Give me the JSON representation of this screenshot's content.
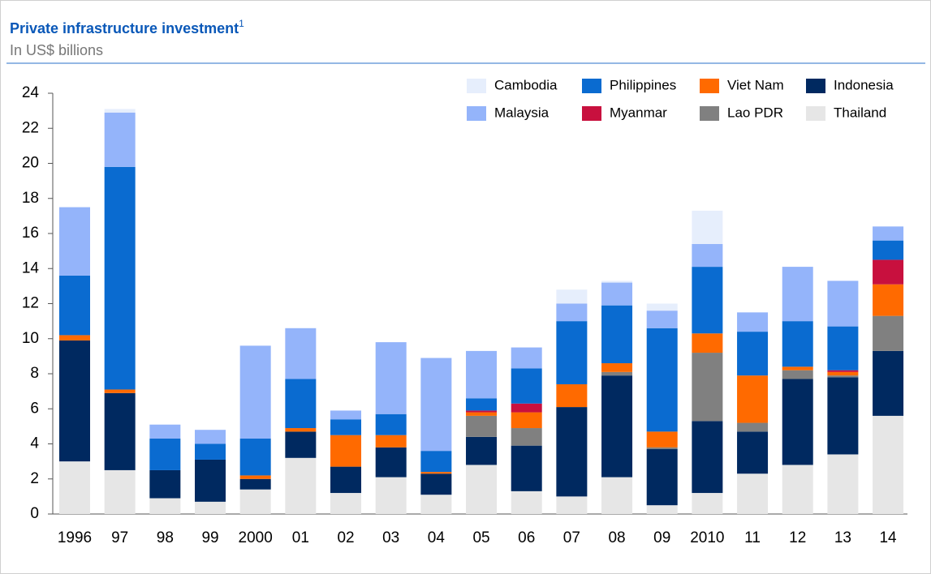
{
  "chart_data": {
    "type": "stacked_bar",
    "title": "Private infrastructure investment",
    "title_footnote": "1",
    "subtitle": "In US$ billions",
    "categories": [
      "1996",
      "97",
      "98",
      "99",
      "2000",
      "01",
      "02",
      "03",
      "04",
      "05",
      "06",
      "07",
      "08",
      "09",
      "2010",
      "11",
      "12",
      "13",
      "14"
    ],
    "series": [
      {
        "name": "Cambodia",
        "color": "#e6eefc",
        "values": [
          0,
          0.2,
          0,
          0,
          0,
          0,
          0,
          0,
          0,
          0,
          0,
          0.8,
          0.1,
          0.4,
          1.9,
          0,
          0,
          0,
          0
        ]
      },
      {
        "name": "Philippines",
        "color": "#0a6bd0",
        "values": [
          3.4,
          12.7,
          1.8,
          0.9,
          2.1,
          2.8,
          0.9,
          1.2,
          1.2,
          0.7,
          2.0,
          3.6,
          3.3,
          5.9,
          3.8,
          2.5,
          2.6,
          2.5,
          1.1
        ]
      },
      {
        "name": "Viet Nam",
        "color": "#ff6a00",
        "values": [
          0.3,
          0.2,
          0,
          0,
          0.2,
          0.2,
          1.8,
          0.7,
          0.1,
          0.2,
          0.9,
          1.3,
          0.5,
          0.9,
          1.1,
          2.7,
          0.2,
          0.2,
          1.8
        ]
      },
      {
        "name": "Indonesia",
        "color": "#002960",
        "values": [
          6.9,
          4.4,
          1.6,
          2.4,
          0.6,
          1.5,
          1.5,
          1.7,
          1.2,
          1.6,
          2.6,
          5.1,
          5.8,
          3.2,
          4.1,
          2.4,
          4.9,
          4.4,
          3.7
        ]
      },
      {
        "name": "Malaysia",
        "color": "#94b4fa",
        "values": [
          3.9,
          3.1,
          0.8,
          0.8,
          5.3,
          2.9,
          0.5,
          4.1,
          5.3,
          2.7,
          1.2,
          1.0,
          1.3,
          1.0,
          1.3,
          1.1,
          3.1,
          2.6,
          0.8
        ]
      },
      {
        "name": "Myanmar",
        "color": "#c8103e",
        "values": [
          0,
          0,
          0,
          0,
          0,
          0,
          0,
          0,
          0,
          0.1,
          0.5,
          0,
          0,
          0,
          0,
          0,
          0,
          0.1,
          1.4
        ]
      },
      {
        "name": "Lao PDR",
        "color": "#808080",
        "values": [
          0,
          0,
          0,
          0,
          0,
          0,
          0,
          0,
          0,
          1.2,
          1.0,
          0,
          0.2,
          0.1,
          3.9,
          0.5,
          0.5,
          0.1,
          2.0
        ]
      },
      {
        "name": "Thailand",
        "color": "#e6e6e6",
        "values": [
          3.0,
          2.5,
          0.9,
          0.7,
          1.4,
          3.2,
          1.2,
          2.1,
          1.1,
          2.8,
          1.3,
          1.0,
          2.1,
          0.5,
          1.2,
          2.3,
          2.8,
          3.4,
          5.6
        ]
      }
    ],
    "ylim": [
      0,
      24
    ],
    "yticks": [
      0,
      2,
      4,
      6,
      8,
      10,
      12,
      14,
      16,
      18,
      20,
      22,
      24
    ],
    "grid": false,
    "legend": "top-right"
  }
}
